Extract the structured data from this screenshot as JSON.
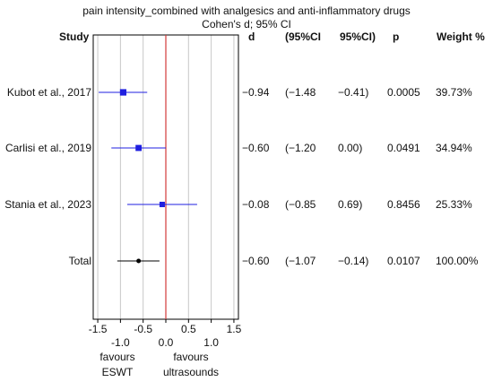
{
  "chart_data": {
    "type": "forest",
    "title": "pain intensity_combined with analgesics and anti-inflammatory drugs",
    "subtitle": "Cohen's d; 95% CI",
    "headers": {
      "study": "Study",
      "d": "d",
      "ci_low": "(95%CI",
      "ci_high": "95%CI)",
      "p": "p",
      "weight": "Weight %"
    },
    "studies": [
      {
        "name": "Kubot et al., 2017",
        "d": -0.94,
        "ci_low": -1.48,
        "ci_high": -0.41,
        "d_label": "−0.94",
        "ci_low_label": "(−1.48",
        "ci_high_label": "−0.41)",
        "p": "0.0005",
        "weight": "39.73%",
        "weight_value": 39.73
      },
      {
        "name": "Carlisi et al., 2019",
        "d": -0.6,
        "ci_low": -1.2,
        "ci_high": 0.0,
        "d_label": "−0.60",
        "ci_low_label": "(−1.20",
        "ci_high_label": "0.00)",
        "p": "0.0491",
        "weight": "34.94%",
        "weight_value": 34.94
      },
      {
        "name": "Stania et al., 2023",
        "d": -0.08,
        "ci_low": -0.85,
        "ci_high": 0.69,
        "d_label": "−0.08",
        "ci_low_label": "(−0.85",
        "ci_high_label": "0.69)",
        "p": "0.8456",
        "weight": "25.33%",
        "weight_value": 25.33
      }
    ],
    "total": {
      "name": "Total",
      "d": -0.6,
      "ci_low": -1.07,
      "ci_high": -0.14,
      "d_label": "−0.60",
      "ci_low_label": "(−1.07",
      "ci_high_label": "−0.14)",
      "p": "0.0107",
      "weight": "100.00%"
    },
    "xlim": [
      -1.6,
      1.6
    ],
    "x_ticks_top": [
      "-1.5",
      "-0.5",
      "0.5",
      "1.5"
    ],
    "x_tick_values_top": [
      -1.5,
      -0.5,
      0.5,
      1.5
    ],
    "x_ticks_bottom": [
      "-1.0",
      "0.0",
      "1.0"
    ],
    "x_tick_values_bottom": [
      -1.0,
      0.0,
      1.0
    ],
    "favours_left": [
      "favours",
      "ESWT"
    ],
    "favours_right": [
      "favours",
      "ultrasounds"
    ],
    "colors": {
      "marker": "#1f1fe0",
      "total_marker": "#000000",
      "null_line": "#d23a3a",
      "grid": "#c8c8c8"
    }
  }
}
